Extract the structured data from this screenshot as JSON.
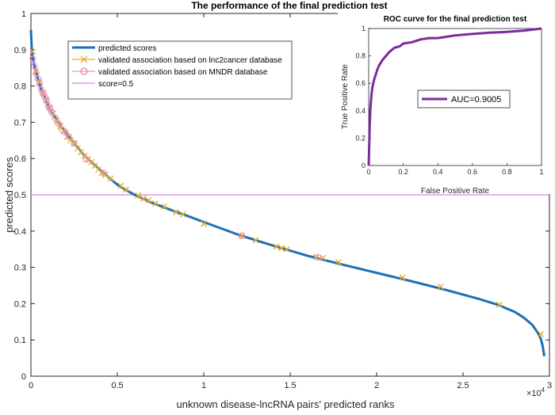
{
  "chart_data": [
    {
      "type": "line",
      "title": "The performance of the final prediction test",
      "xlabel": "unknown disease-lncRNA pairs' predicted ranks",
      "ylabel": "predicted scores",
      "x_multiplier_label": "×10",
      "x_multiplier_exp": "4",
      "xlim": [
        0,
        3
      ],
      "ylim": [
        0,
        1
      ],
      "xticks": [
        0,
        0.5,
        1,
        1.5,
        2,
        2.5,
        3
      ],
      "xtick_labels": [
        "0",
        "0.5",
        "1",
        "1.5",
        "2",
        "2.5",
        "3"
      ],
      "yticks": [
        0,
        0.1,
        0.2,
        0.3,
        0.4,
        0.5,
        0.6,
        0.7,
        0.8,
        0.9,
        1
      ],
      "ytick_labels": [
        "0",
        "0.1",
        "0.2",
        "0.3",
        "0.4",
        "0.5",
        "0.6",
        "0.7",
        "0.8",
        "0.9",
        "1"
      ],
      "legend_position": "top-left",
      "series": [
        {
          "name": "predicted scores",
          "color": "#1f6fb4",
          "x": [
            0,
            0.005,
            0.01,
            0.02,
            0.04,
            0.06,
            0.08,
            0.1,
            0.15,
            0.2,
            0.25,
            0.3,
            0.35,
            0.4,
            0.45,
            0.5,
            0.55,
            0.6,
            0.7,
            0.8,
            0.9,
            1.0,
            1.2,
            1.4,
            1.6,
            1.8,
            2.0,
            2.2,
            2.4,
            2.6,
            2.7,
            2.8,
            2.85,
            2.9,
            2.93,
            2.95,
            2.96,
            2.97
          ],
          "y": [
            0.955,
            0.9,
            0.88,
            0.855,
            0.82,
            0.79,
            0.77,
            0.745,
            0.705,
            0.672,
            0.642,
            0.613,
            0.59,
            0.568,
            0.548,
            0.528,
            0.513,
            0.5,
            0.478,
            0.46,
            0.443,
            0.425,
            0.39,
            0.36,
            0.332,
            0.308,
            0.285,
            0.262,
            0.238,
            0.212,
            0.197,
            0.177,
            0.162,
            0.142,
            0.122,
            0.103,
            0.085,
            0.055
          ]
        },
        {
          "name": "validated association based on lnc2cancer database",
          "color": "#e8b020",
          "marker": "x",
          "x": [
            0.01,
            0.03,
            0.05,
            0.07,
            0.09,
            0.11,
            0.13,
            0.15,
            0.17,
            0.19,
            0.21,
            0.23,
            0.25,
            0.27,
            0.29,
            0.31,
            0.33,
            0.35,
            0.37,
            0.39,
            0.41,
            0.43,
            0.46,
            0.52,
            0.55,
            0.62,
            0.65,
            0.68,
            0.72,
            0.77,
            0.84,
            0.88,
            1.0,
            1.22,
            1.3,
            1.42,
            1.45,
            1.48,
            1.65,
            1.69,
            1.78,
            2.15,
            2.37,
            2.71,
            2.95
          ],
          "y": [
            0.895,
            0.84,
            0.81,
            0.78,
            0.76,
            0.74,
            0.725,
            0.705,
            0.69,
            0.675,
            0.66,
            0.65,
            0.642,
            0.628,
            0.618,
            0.608,
            0.598,
            0.59,
            0.58,
            0.57,
            0.56,
            0.555,
            0.545,
            0.525,
            0.515,
            0.498,
            0.49,
            0.485,
            0.476,
            0.468,
            0.452,
            0.446,
            0.42,
            0.387,
            0.375,
            0.357,
            0.353,
            0.35,
            0.328,
            0.326,
            0.314,
            0.272,
            0.247,
            0.197,
            0.116
          ]
        },
        {
          "name": "validated association based on MNDR database",
          "color": "#f090c0",
          "marker": "o",
          "x": [
            0.01,
            0.02,
            0.03,
            0.04,
            0.05,
            0.06,
            0.07,
            0.08,
            0.09,
            0.1,
            0.11,
            0.12,
            0.14,
            0.16,
            0.18,
            0.2,
            0.22,
            0.25,
            0.32,
            0.42,
            1.22,
            1.66
          ],
          "y": [
            0.875,
            0.855,
            0.835,
            0.82,
            0.805,
            0.79,
            0.78,
            0.77,
            0.76,
            0.745,
            0.738,
            0.728,
            0.712,
            0.697,
            0.68,
            0.672,
            0.66,
            0.642,
            0.598,
            0.56,
            0.387,
            0.328
          ]
        },
        {
          "name": "score=0.5",
          "color": "#c86ad8",
          "y_const": 0.5
        }
      ]
    },
    {
      "type": "line",
      "title": "ROC curve for the final prediction test",
      "xlabel": "False Positive Rate",
      "ylabel": "True Positive Rate",
      "xlim": [
        0,
        1
      ],
      "ylim": [
        0,
        1
      ],
      "xticks": [
        0,
        0.2,
        0.4,
        0.6,
        0.8,
        1
      ],
      "xtick_labels": [
        "0",
        "0.2",
        "0.4",
        "0.6",
        "0.8",
        "1"
      ],
      "yticks": [
        0,
        0.2,
        0.4,
        0.6,
        0.8,
        1
      ],
      "ytick_labels": [
        "0",
        "0.2",
        "0.4",
        "0.6",
        "0.8",
        "1"
      ],
      "legend_position": "center-right",
      "series": [
        {
          "name": "AUC=0.9005",
          "color": "#7b2c9b",
          "x": [
            0,
            0.003,
            0.006,
            0.01,
            0.015,
            0.02,
            0.03,
            0.04,
            0.05,
            0.06,
            0.08,
            0.1,
            0.12,
            0.15,
            0.18,
            0.2,
            0.25,
            0.3,
            0.35,
            0.4,
            0.5,
            0.6,
            0.7,
            0.8,
            0.9,
            1.0
          ],
          "y": [
            0,
            0.15,
            0.3,
            0.42,
            0.5,
            0.56,
            0.62,
            0.66,
            0.7,
            0.73,
            0.77,
            0.8,
            0.83,
            0.86,
            0.87,
            0.89,
            0.9,
            0.92,
            0.93,
            0.93,
            0.95,
            0.96,
            0.97,
            0.975,
            0.985,
            1.0
          ]
        }
      ]
    }
  ]
}
